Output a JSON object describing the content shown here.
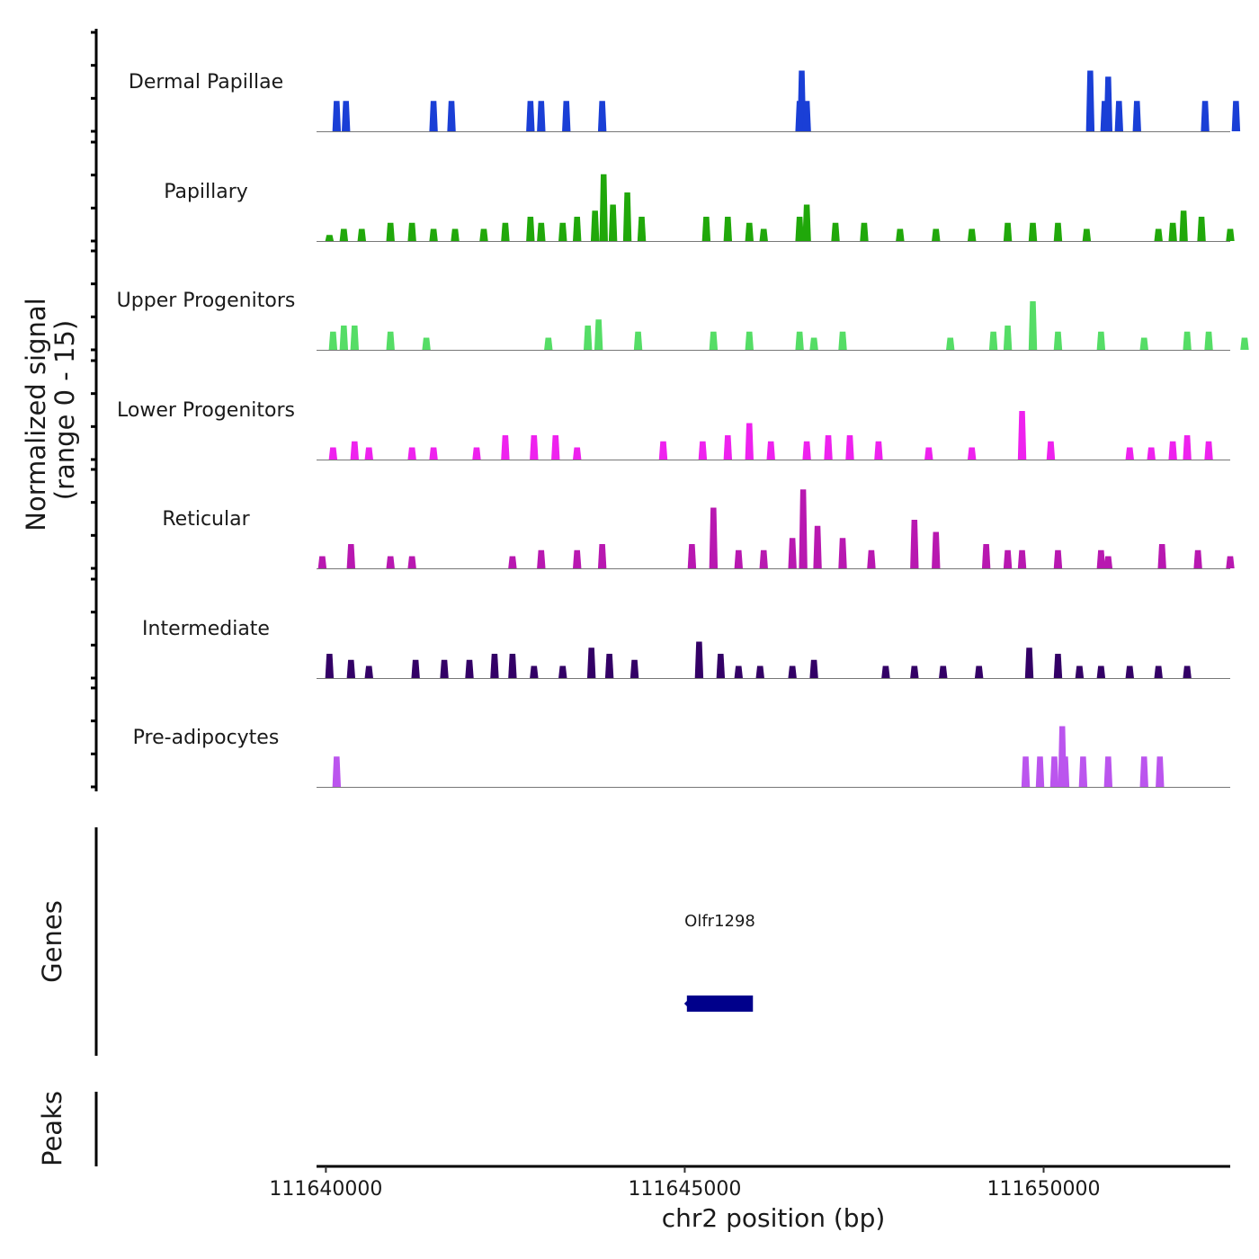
{
  "chart_data": {
    "type": "area",
    "title": "",
    "ylabel_line1": "Normalized signal",
    "ylabel_line2": "(range 0 - 15)",
    "ylim": [
      0,
      15
    ],
    "xlabel": "chr2 position (bp)",
    "xlim": [
      111639870,
      111652600
    ],
    "x_ticks": [
      111640000,
      111645000,
      111650000
    ],
    "x_tick_labels": [
      "111640000",
      "111645000",
      "111650000"
    ],
    "tracks": [
      {
        "name": "Dermal Papillae",
        "color": "#1a3fd6",
        "peaks": [
          [
            111640150,
            5
          ],
          [
            111640280,
            5
          ],
          [
            111641500,
            5
          ],
          [
            111641750,
            5
          ],
          [
            111642850,
            5
          ],
          [
            111643000,
            5
          ],
          [
            111643350,
            5
          ],
          [
            111643850,
            5
          ],
          [
            111646600,
            5
          ],
          [
            111646630,
            10
          ],
          [
            111646700,
            5
          ],
          [
            111650650,
            10
          ],
          [
            111650850,
            5
          ],
          [
            111650900,
            9
          ],
          [
            111651050,
            5
          ],
          [
            111651300,
            5
          ],
          [
            111652250,
            5
          ],
          [
            111652680,
            5
          ]
        ]
      },
      {
        "name": "Papillary",
        "color": "#20a80a",
        "peaks": [
          [
            111640050,
            1
          ],
          [
            111640250,
            2
          ],
          [
            111640500,
            2
          ],
          [
            111640900,
            3
          ],
          [
            111641200,
            3
          ],
          [
            111641500,
            2
          ],
          [
            111641800,
            2
          ],
          [
            111642200,
            2
          ],
          [
            111642500,
            3
          ],
          [
            111642850,
            4
          ],
          [
            111643000,
            3
          ],
          [
            111643300,
            3
          ],
          [
            111643500,
            4
          ],
          [
            111643750,
            5
          ],
          [
            111643870,
            11
          ],
          [
            111644000,
            6
          ],
          [
            111644200,
            8
          ],
          [
            111644400,
            4
          ],
          [
            111645300,
            4
          ],
          [
            111645600,
            4
          ],
          [
            111645900,
            3
          ],
          [
            111646100,
            2
          ],
          [
            111646600,
            4
          ],
          [
            111646700,
            6
          ],
          [
            111647100,
            3
          ],
          [
            111647500,
            3
          ],
          [
            111648000,
            2
          ],
          [
            111648500,
            2
          ],
          [
            111649000,
            2
          ],
          [
            111649500,
            3
          ],
          [
            111649850,
            3
          ],
          [
            111650200,
            3
          ],
          [
            111650600,
            2
          ],
          [
            111651600,
            2
          ],
          [
            111651800,
            3
          ],
          [
            111651950,
            5
          ],
          [
            111652200,
            4
          ],
          [
            111652600,
            2
          ]
        ]
      },
      {
        "name": "Upper Progenitors",
        "color": "#55dd66",
        "peaks": [
          [
            111640100,
            3
          ],
          [
            111640250,
            4
          ],
          [
            111640400,
            4
          ],
          [
            111640900,
            3
          ],
          [
            111641400,
            2
          ],
          [
            111643100,
            2
          ],
          [
            111643650,
            4
          ],
          [
            111643800,
            5
          ],
          [
            111644350,
            3
          ],
          [
            111645400,
            3
          ],
          [
            111645900,
            3
          ],
          [
            111646600,
            3
          ],
          [
            111646800,
            2
          ],
          [
            111647200,
            3
          ],
          [
            111648700,
            2
          ],
          [
            111649300,
            3
          ],
          [
            111649500,
            4
          ],
          [
            111649850,
            8
          ],
          [
            111650200,
            3
          ],
          [
            111650800,
            3
          ],
          [
            111651400,
            2
          ],
          [
            111652000,
            3
          ],
          [
            111652300,
            3
          ],
          [
            111652800,
            2
          ]
        ]
      },
      {
        "name": "Lower Progenitors",
        "color": "#ee22ee",
        "peaks": [
          [
            111640100,
            2
          ],
          [
            111640400,
            3
          ],
          [
            111640600,
            2
          ],
          [
            111641200,
            2
          ],
          [
            111641500,
            2
          ],
          [
            111642100,
            2
          ],
          [
            111642500,
            4
          ],
          [
            111642900,
            4
          ],
          [
            111643200,
            4
          ],
          [
            111643500,
            2
          ],
          [
            111644700,
            3
          ],
          [
            111645250,
            3
          ],
          [
            111645600,
            4
          ],
          [
            111645900,
            6
          ],
          [
            111646200,
            3
          ],
          [
            111646700,
            3
          ],
          [
            111647000,
            4
          ],
          [
            111647300,
            4
          ],
          [
            111647700,
            3
          ],
          [
            111648400,
            2
          ],
          [
            111649000,
            2
          ],
          [
            111649700,
            8
          ],
          [
            111650100,
            3
          ],
          [
            111651200,
            2
          ],
          [
            111651500,
            2
          ],
          [
            111651800,
            3
          ],
          [
            111652000,
            4
          ],
          [
            111652300,
            3
          ]
        ]
      },
      {
        "name": "Reticular",
        "color": "#b818b0",
        "peaks": [
          [
            111639950,
            2
          ],
          [
            111640350,
            4
          ],
          [
            111640900,
            2
          ],
          [
            111641200,
            2
          ],
          [
            111642600,
            2
          ],
          [
            111643000,
            3
          ],
          [
            111643500,
            3
          ],
          [
            111643850,
            4
          ],
          [
            111645100,
            4
          ],
          [
            111645400,
            10
          ],
          [
            111645750,
            3
          ],
          [
            111646100,
            3
          ],
          [
            111646500,
            5
          ],
          [
            111646650,
            13
          ],
          [
            111646850,
            7
          ],
          [
            111647200,
            5
          ],
          [
            111647600,
            3
          ],
          [
            111648200,
            8
          ],
          [
            111648500,
            6
          ],
          [
            111649200,
            4
          ],
          [
            111649500,
            3
          ],
          [
            111649700,
            3
          ],
          [
            111650200,
            3
          ],
          [
            111650800,
            3
          ],
          [
            111650900,
            2
          ],
          [
            111651650,
            4
          ],
          [
            111652150,
            3
          ],
          [
            111652600,
            2
          ]
        ]
      },
      {
        "name": "Intermediate",
        "color": "#330066",
        "peaks": [
          [
            111640050,
            4
          ],
          [
            111640350,
            3
          ],
          [
            111640600,
            2
          ],
          [
            111641250,
            3
          ],
          [
            111641650,
            3
          ],
          [
            111642000,
            3
          ],
          [
            111642350,
            4
          ],
          [
            111642600,
            4
          ],
          [
            111642900,
            2
          ],
          [
            111643300,
            2
          ],
          [
            111643700,
            5
          ],
          [
            111643950,
            4
          ],
          [
            111644300,
            3
          ],
          [
            111645200,
            6
          ],
          [
            111645500,
            4
          ],
          [
            111645750,
            2
          ],
          [
            111646050,
            2
          ],
          [
            111646500,
            2
          ],
          [
            111646800,
            3
          ],
          [
            111647800,
            2
          ],
          [
            111648200,
            2
          ],
          [
            111648600,
            2
          ],
          [
            111649100,
            2
          ],
          [
            111649800,
            5
          ],
          [
            111650200,
            4
          ],
          [
            111650500,
            2
          ],
          [
            111650800,
            2
          ],
          [
            111651200,
            2
          ],
          [
            111651600,
            2
          ],
          [
            111652000,
            2
          ]
        ]
      },
      {
        "name": "Pre-adipocytes",
        "color": "#bb55ee",
        "peaks": [
          [
            111640150,
            5
          ],
          [
            111649750,
            5
          ],
          [
            111649950,
            5
          ],
          [
            111650150,
            5
          ],
          [
            111650260,
            10
          ],
          [
            111650300,
            5
          ],
          [
            111650550,
            5
          ],
          [
            111650900,
            5
          ],
          [
            111651400,
            5
          ],
          [
            111651620,
            5
          ]
        ]
      }
    ],
    "genes_label": "Genes",
    "gene": {
      "name": "Olfr1298",
      "start": 111645030,
      "end": 111645950,
      "color": "#00008b"
    },
    "peaks_label": "Peaks"
  }
}
